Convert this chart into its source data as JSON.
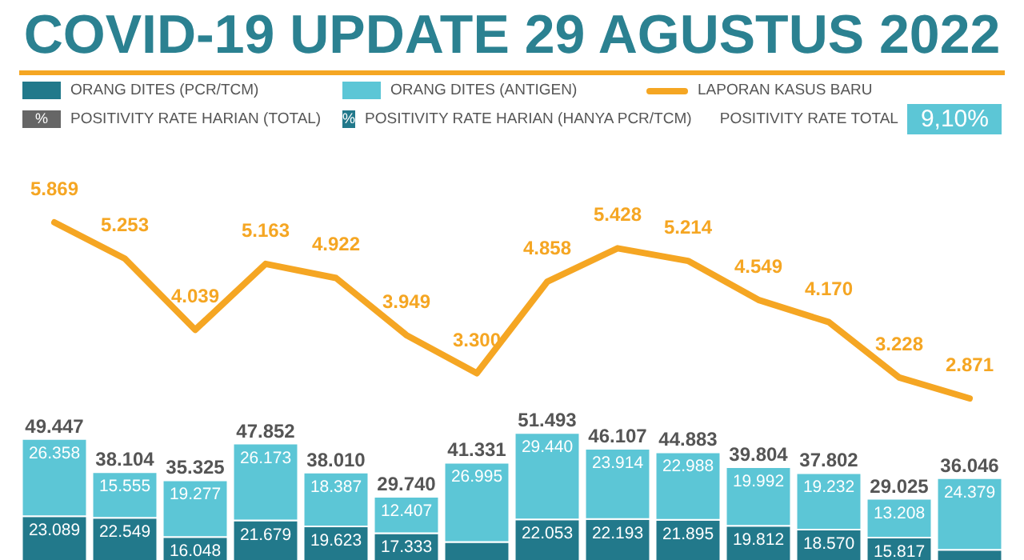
{
  "chart_data": [
    {
      "type": "line",
      "title": "COVID-19 UPDATE 29 AGUSTUS 2022",
      "legend": "top",
      "tick_labels": false,
      "categories": [
        null,
        null,
        null,
        null,
        null,
        null,
        null,
        null,
        null,
        null,
        null,
        null,
        null,
        null
      ],
      "series": [
        {
          "name": "LAPORAN KASUS BARU",
          "color": "#f5a623",
          "values": [
            5869,
            5253,
            4039,
            5163,
            4922,
            3949,
            3300,
            4858,
            5428,
            5214,
            4549,
            4170,
            3228,
            2871
          ],
          "value_labels": [
            "5.869",
            "5.253",
            "4.039",
            "5.163",
            "4.922",
            "3.949",
            "3.300",
            "4.858",
            "5.428",
            "5.214",
            "4.549",
            "4.170",
            "3.228",
            "2.871"
          ]
        }
      ],
      "annotations": [
        "%",
        "POSITIVITY RATE HARIAN (TOTAL)",
        "%",
        "POSITIVITY RATE HARIAN (HANYA PCR/TCM)",
        "POSITIVITY RATE TOTAL",
        "9,10%"
      ]
    },
    {
      "type": "bar",
      "stacked": true,
      "legend": "top",
      "tick_labels": false,
      "categories": [
        null,
        null,
        null,
        null,
        null,
        null,
        null,
        null,
        null,
        null,
        null,
        null,
        null,
        null
      ],
      "ylim": [
        0,
        60000
      ],
      "series": [
        {
          "name": "ORANG DITES (PCR/TCM)",
          "color": "#22798b",
          "values": [
            23089,
            22549,
            16048,
            21679,
            19623,
            17333,
            14336,
            22053,
            22193,
            21895,
            19812,
            18570,
            15817,
            11667
          ],
          "value_labels": [
            "23.089",
            "22.549",
            "16.048",
            "21.679",
            "19.623",
            "17.333",
            null,
            "22.053",
            "22.193",
            "21.895",
            "19.812",
            "18.570",
            "15.817",
            null
          ]
        },
        {
          "name": "ORANG DITES (ANTIGEN)",
          "color": "#5cc6d6",
          "values": [
            26358,
            15555,
            19277,
            26173,
            18387,
            12407,
            26995,
            29440,
            23914,
            22988,
            19992,
            19232,
            13208,
            24379
          ],
          "value_labels": [
            "26.358",
            "15.555",
            "19.277",
            "26.173",
            "18.387",
            "12.407",
            "26.995",
            "29.440",
            "23.914",
            "22.988",
            "19.992",
            "19.232",
            "13.208",
            "24.379"
          ]
        }
      ],
      "totals": [
        "49.447",
        "38.104",
        "35.325",
        "47.852",
        "38.010",
        "29.740",
        "41.331",
        "51.493",
        "46.107",
        "44.883",
        "39.804",
        "37.802",
        "29.025",
        "36.046"
      ]
    }
  ]
}
